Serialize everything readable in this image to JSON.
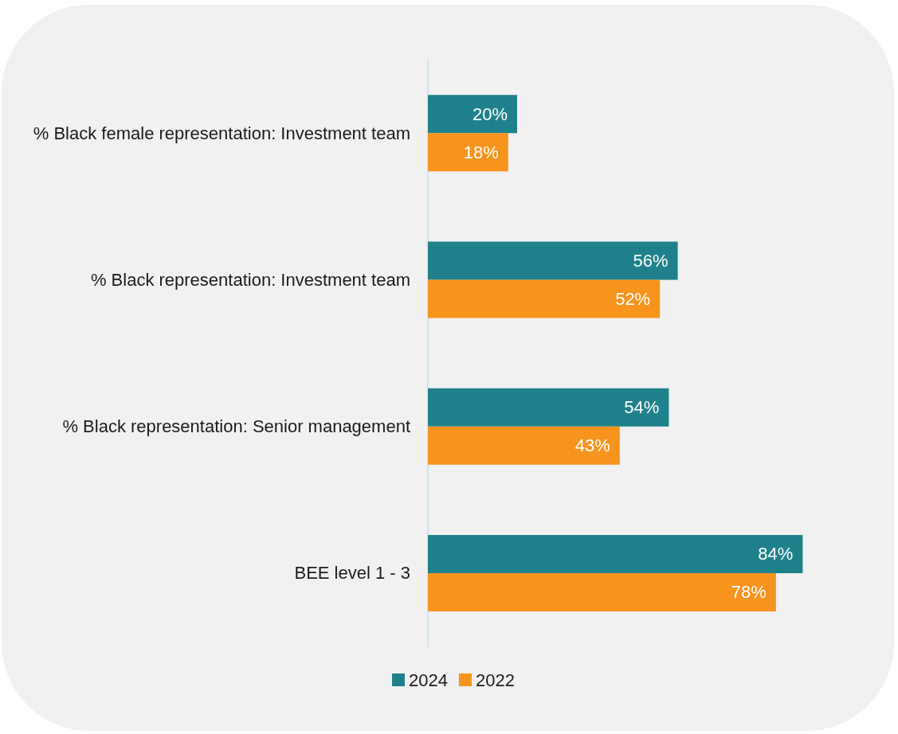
{
  "chart_data": {
    "type": "bar",
    "orientation": "horizontal",
    "categories": [
      "% Black female representation: Investment team",
      "% Black representation: Investment team",
      "% Black representation: Senior management",
      "BEE level 1 - 3"
    ],
    "series": [
      {
        "name": "2024",
        "color": "#1f818c",
        "values": [
          20,
          56,
          54,
          84
        ],
        "value_labels": [
          "20%",
          "56%",
          "54%",
          "84%"
        ]
      },
      {
        "name": "2022",
        "color": "#f7941d",
        "values": [
          18,
          52,
          43,
          78
        ],
        "value_labels": [
          "18%",
          "52%",
          "43%",
          "78%"
        ]
      }
    ],
    "legend": "bottom",
    "grid": false
  }
}
